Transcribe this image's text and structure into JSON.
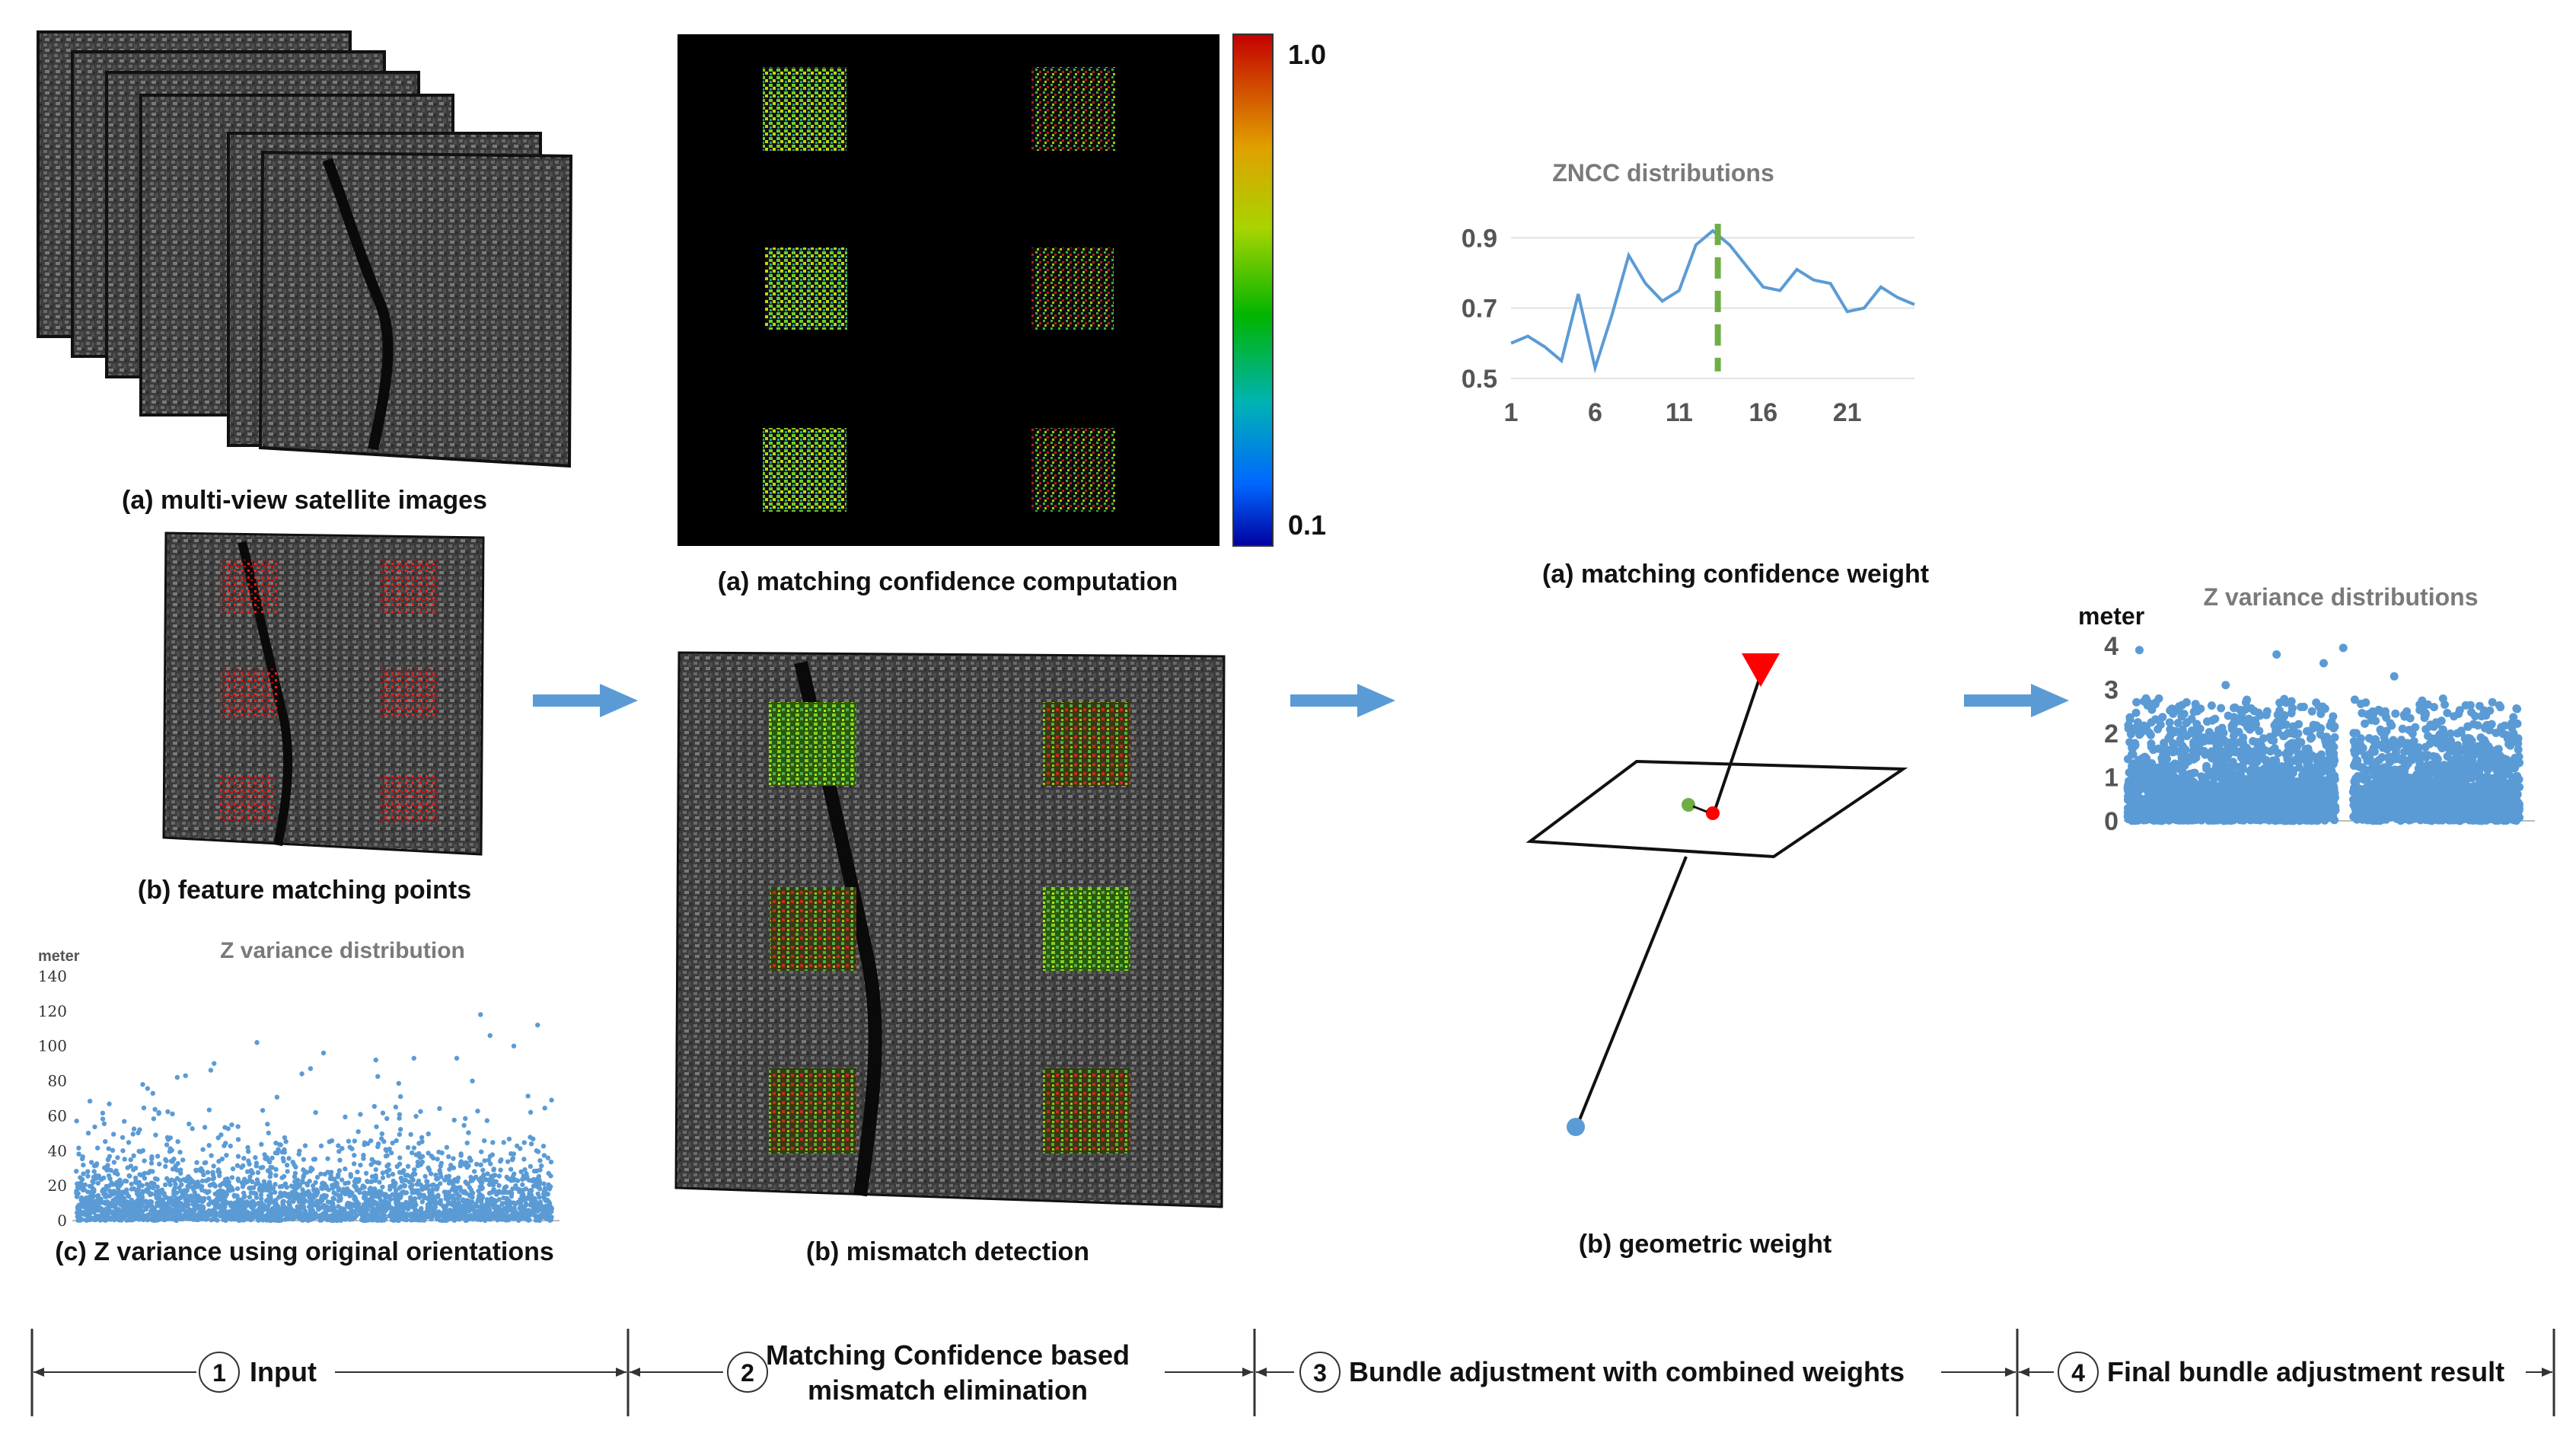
{
  "captions": {
    "input_a": "(a) multi-view satellite images",
    "input_b": "(b) feature matching points",
    "input_c": "(c) Z variance using original orientations",
    "conf_a": "(a) matching confidence computation",
    "conf_b": "(b) mismatch detection",
    "weight_a": "(a) matching confidence weight",
    "weight_b": "(b) geometric weight"
  },
  "colorbar": {
    "max_label": "1.0",
    "min_label": "0.1"
  },
  "stages": [
    {
      "num": "1",
      "label": "Input"
    },
    {
      "num": "2",
      "label_line1": "Matching Confidence based",
      "label_line2": "mismatch elimination"
    },
    {
      "num": "3",
      "label": "Bundle adjustment with combined weights"
    },
    {
      "num": "4",
      "label": "Final bundle adjustment result"
    }
  ],
  "colors": {
    "arrow": "#5b9bd5",
    "line_series": "#5b9bd5",
    "peak_marker": "#70ad47",
    "scatter": "#5b9bd5",
    "camera": "#ff0000",
    "ground_point": "#5b9bd5",
    "projected_point": "#ff0000",
    "observed_point": "#70ad47"
  },
  "chart_data": [
    {
      "id": "z_variance_original",
      "type": "scatter",
      "title": "Z variance distribution",
      "ylabel": "meter",
      "yticks": [
        "0",
        "20",
        "40",
        "60",
        "80",
        "100",
        "120",
        "140"
      ],
      "ylim": [
        0,
        140
      ],
      "point_count": 3000,
      "density_mean": 18,
      "outliers": [
        [
          0.38,
          102
        ],
        [
          0.52,
          96
        ],
        [
          0.63,
          92
        ],
        [
          0.71,
          93
        ],
        [
          0.8,
          93
        ],
        [
          0.85,
          118
        ],
        [
          0.87,
          106
        ],
        [
          0.92,
          100
        ],
        [
          0.97,
          112
        ],
        [
          0.23,
          83
        ],
        [
          0.29,
          90
        ],
        [
          0.14,
          78
        ]
      ]
    },
    {
      "id": "zncc_distributions",
      "type": "line",
      "title": "ZNCC distributions",
      "x": [
        1,
        2,
        3,
        4,
        5,
        6,
        7,
        8,
        9,
        10,
        11,
        12,
        13,
        14,
        15,
        16,
        17,
        18,
        19,
        20,
        21,
        22,
        23,
        24,
        25
      ],
      "values": [
        0.6,
        0.62,
        0.59,
        0.55,
        0.74,
        0.53,
        0.68,
        0.85,
        0.77,
        0.72,
        0.75,
        0.88,
        0.92,
        0.88,
        0.82,
        0.76,
        0.75,
        0.81,
        0.78,
        0.77,
        0.69,
        0.7,
        0.76,
        0.73,
        0.71
      ],
      "xticks": [
        "1",
        "6",
        "11",
        "16",
        "21"
      ],
      "yticks": [
        "0.5",
        "0.7",
        "0.9"
      ],
      "ylim": [
        0.45,
        0.97
      ],
      "peak_x": 13.3
    },
    {
      "id": "z_variance_final",
      "type": "scatter",
      "title": "Z variance distributions",
      "ylabel": "meter",
      "yticks": [
        "0",
        "1",
        "2",
        "3",
        "4"
      ],
      "ylim": [
        0,
        4
      ],
      "point_count": 3500,
      "density_mean": 1.2,
      "gap": [
        0.53,
        0.575
      ],
      "outliers": [
        [
          0.03,
          3.9
        ],
        [
          0.38,
          3.8
        ],
        [
          0.55,
          3.95
        ],
        [
          0.68,
          3.3
        ],
        [
          0.5,
          3.6
        ],
        [
          0.25,
          3.1
        ]
      ]
    }
  ]
}
